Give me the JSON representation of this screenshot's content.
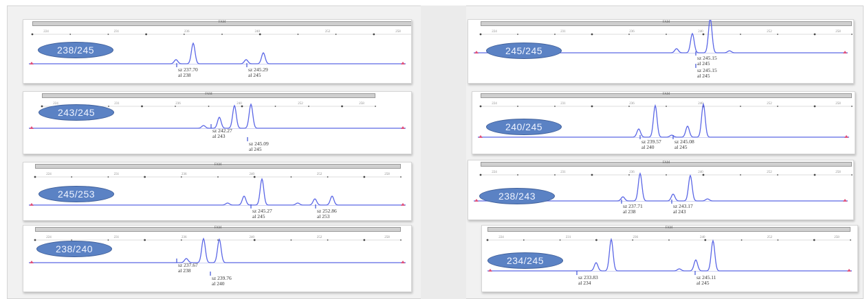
{
  "header_title": "FAM",
  "axis_ticks": [
    "224",
    "231",
    "236",
    "240",
    "252",
    "258"
  ],
  "panels": [
    {
      "genotype": "238/245",
      "alleles": [
        {
          "size": "sz 237.70",
          "call": "al 238"
        },
        {
          "size": "sz 245.29",
          "call": "al 245"
        }
      ]
    },
    {
      "genotype": "243/245",
      "alleles": [
        {
          "size": "sz 242.27",
          "call": "al 243"
        },
        {
          "size": "sz 245.09",
          "call": "al 245"
        }
      ]
    },
    {
      "genotype": "245/253",
      "alleles": [
        {
          "size": "sz 245.27",
          "call": "al 245"
        },
        {
          "size": "sz 252.86",
          "call": "al 253"
        }
      ]
    },
    {
      "genotype": "238/240",
      "alleles": [
        {
          "size": "sz 237.67",
          "call": "al 238"
        },
        {
          "size": "sz 239.76",
          "call": "al 240"
        }
      ]
    },
    {
      "genotype": "245/245",
      "alleles": [
        {
          "size": "sz 245.15",
          "call": "al 245"
        },
        {
          "size": "sz 245.15",
          "call": "al 245"
        }
      ]
    },
    {
      "genotype": "240/245",
      "alleles": [
        {
          "size": "sz 239.57",
          "call": "al 240"
        },
        {
          "size": "sz 245.08",
          "call": "al 245"
        }
      ]
    },
    {
      "genotype": "238/243",
      "alleles": [
        {
          "size": "sz 237.71",
          "call": "al 238"
        },
        {
          "size": "sz 243.17",
          "call": "al 243"
        }
      ]
    },
    {
      "genotype": "234/245",
      "alleles": [
        {
          "size": "sz 233.83",
          "call": "al 234"
        },
        {
          "size": "sz 245.11",
          "call": "al 245"
        }
      ]
    }
  ],
  "colors": {
    "trace": "#5a66e6",
    "baseline_marker": "#e0507a",
    "genotype_badge": "#5b82c4"
  }
}
